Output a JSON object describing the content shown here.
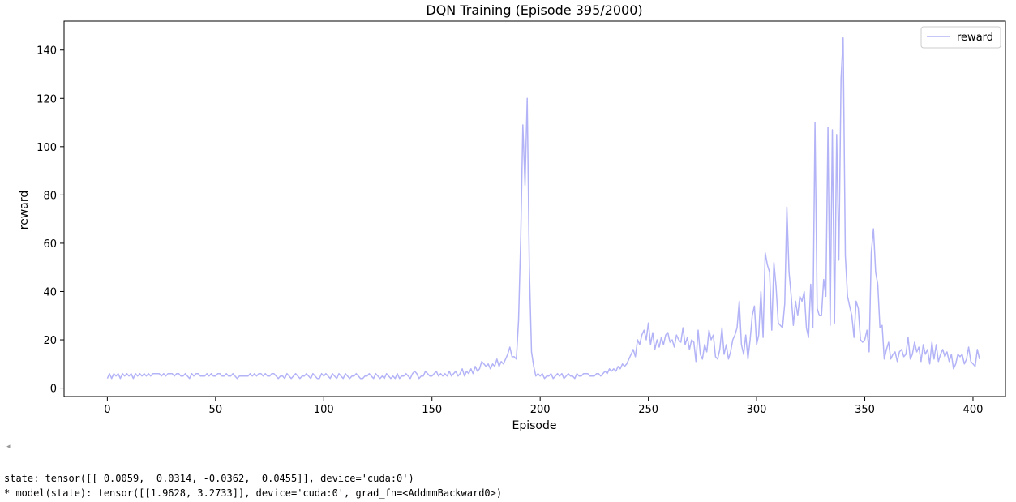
{
  "chart_data": {
    "type": "line",
    "title": "DQN Training (Episode 395/2000)",
    "xlabel": "Episode",
    "ylabel": "reward",
    "xlim": [
      -20,
      415
    ],
    "ylim": [
      -3.5,
      152
    ],
    "xticks": [
      0,
      50,
      100,
      150,
      200,
      250,
      300,
      350,
      400
    ],
    "yticks": [
      0,
      20,
      40,
      60,
      80,
      100,
      120,
      140
    ],
    "grid": false,
    "legend_position": "upper right",
    "series": [
      {
        "name": "reward",
        "color": "#b3b3f7",
        "x_start": 0,
        "values": [
          4,
          6,
          4,
          6,
          5,
          6,
          4,
          6,
          5,
          6,
          5,
          6,
          4,
          6,
          5,
          6,
          5,
          6,
          5,
          6,
          5,
          6,
          6,
          6,
          6,
          5,
          6,
          5,
          6,
          6,
          6,
          5,
          6,
          6,
          5,
          5,
          6,
          5,
          4,
          6,
          5,
          6,
          6,
          5,
          5,
          5,
          6,
          5,
          6,
          5,
          5,
          6,
          6,
          5,
          5,
          6,
          5,
          5,
          6,
          5,
          4,
          5,
          5,
          5,
          5,
          5,
          6,
          5,
          6,
          5,
          6,
          6,
          5,
          6,
          5,
          5,
          6,
          6,
          5,
          4,
          5,
          5,
          4,
          6,
          5,
          4,
          5,
          6,
          5,
          4,
          5,
          5,
          6,
          5,
          4,
          6,
          5,
          4,
          4,
          6,
          5,
          6,
          5,
          4,
          6,
          5,
          4,
          6,
          5,
          4,
          6,
          5,
          4,
          5,
          5,
          6,
          5,
          4,
          4,
          5,
          5,
          6,
          5,
          4,
          6,
          5,
          4,
          5,
          4,
          6,
          5,
          4,
          5,
          4,
          6,
          4,
          5,
          5,
          6,
          5,
          4,
          6,
          7,
          6,
          4,
          5,
          5,
          7,
          6,
          5,
          5,
          6,
          7,
          5,
          6,
          5,
          6,
          5,
          7,
          5,
          6,
          7,
          5,
          6,
          8,
          5,
          7,
          6,
          8,
          6,
          9,
          7,
          8,
          11,
          10,
          9,
          10,
          8,
          10,
          9,
          12,
          9,
          11,
          10,
          12,
          14,
          17,
          13,
          13,
          12,
          28,
          62,
          109,
          84,
          120,
          50,
          15,
          9,
          5,
          6,
          5,
          6,
          4,
          5,
          5,
          6,
          4,
          5,
          6,
          5,
          6,
          4,
          5,
          6,
          5,
          5,
          4,
          6,
          5,
          5,
          6,
          6,
          6,
          5,
          5,
          5,
          6,
          6,
          5,
          6,
          7,
          6,
          8,
          7,
          8,
          7,
          9,
          8,
          10,
          9,
          10,
          12,
          14,
          16,
          13,
          20,
          18,
          22,
          24,
          20,
          27,
          18,
          23,
          16,
          20,
          17,
          21,
          18,
          22,
          23,
          19,
          20,
          17,
          22,
          20,
          19,
          25,
          18,
          21,
          16,
          20,
          19,
          11,
          24,
          14,
          12,
          18,
          15,
          24,
          20,
          22,
          13,
          12,
          16,
          25,
          14,
          18,
          12,
          15,
          20,
          22,
          25,
          36,
          18,
          14,
          22,
          12,
          20,
          30,
          34,
          18,
          22,
          40,
          21,
          56,
          51,
          48,
          24,
          52,
          42,
          27,
          26,
          25,
          35,
          75,
          48,
          38,
          26,
          36,
          30,
          38,
          36,
          40,
          25,
          21,
          43,
          25,
          110,
          33,
          30,
          30,
          45,
          38,
          108,
          26,
          107,
          27,
          105,
          53,
          128,
          145,
          55,
          38,
          34,
          30,
          21,
          36,
          33,
          20,
          19,
          20,
          24,
          15,
          56,
          66,
          48,
          43,
          25,
          26,
          12,
          16,
          19,
          12,
          14,
          15,
          11,
          15,
          16,
          13,
          14,
          21,
          12,
          14,
          19,
          15,
          17,
          11,
          18,
          14,
          16,
          10,
          19,
          12,
          18,
          11,
          14,
          16,
          13,
          15,
          11,
          14,
          8,
          10,
          14,
          13,
          14,
          10,
          12,
          17,
          11,
          10,
          9,
          16,
          12
        ]
      }
    ]
  },
  "console": {
    "line1": "state: tensor([[ 0.0059,  0.0314, -0.0362,  0.0455]], device='cuda:0')",
    "line2": "* model(state): tensor([[1.9628, 3.2733]], device='cuda:0', grad_fn=<AddmmBackward0>)"
  },
  "scroll_arrow_icon": "◂"
}
